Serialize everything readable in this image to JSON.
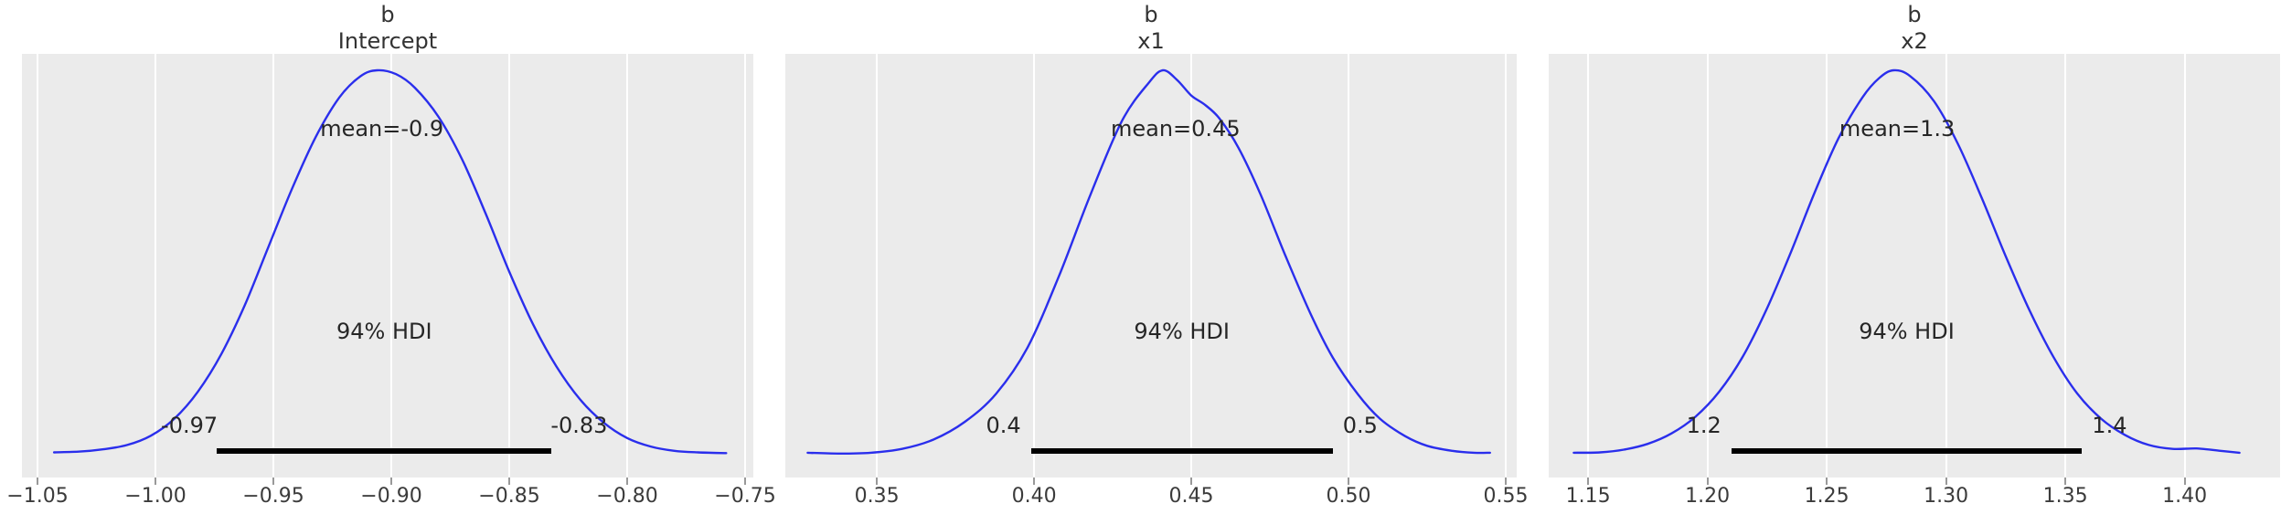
{
  "figure": {
    "background_color": "#ffffff",
    "panel_background_color": "#ebebeb",
    "gridline_color": "#ffffff",
    "curve_color": "#2a2eec",
    "hdi_bar_color": "#000000",
    "title_color": "#333333",
    "annotation_color": "#262626",
    "tick_label_color": "#3b3b3b"
  },
  "chart_data": [
    {
      "type": "kde-posterior",
      "title_line1": "b",
      "title_line2": "Intercept",
      "mean": {
        "label": "mean=-0.9",
        "x": -0.904
      },
      "hdi": {
        "label": "94% HDI",
        "low": -0.974,
        "high": -0.832,
        "low_label": "-0.97",
        "high_label": "-0.83",
        "probability": "94%"
      },
      "xlim": [
        -1.0566,
        -0.7465
      ],
      "tick_values": [
        -1.05,
        -1.0,
        -0.95,
        -0.9,
        -0.85,
        -0.8,
        -0.75
      ],
      "tick_labels": [
        "−1.05",
        "−1.00",
        "−0.95",
        "−0.90",
        "−0.85",
        "−0.80",
        "−0.75"
      ],
      "grid": true,
      "legend": null,
      "curve": {
        "x": [
          -1.043,
          -1.032,
          -1.022,
          -1.012,
          -1.002,
          -0.992,
          -0.982,
          -0.972,
          -0.962,
          -0.952,
          -0.942,
          -0.932,
          -0.922,
          -0.913,
          -0.906,
          -0.898,
          -0.89,
          -0.88,
          -0.87,
          -0.86,
          -0.85,
          -0.84,
          -0.83,
          -0.82,
          -0.81,
          -0.8,
          -0.79,
          -0.78,
          -0.77,
          -0.758
        ],
        "y": [
          0.013,
          0.015,
          0.021,
          0.032,
          0.056,
          0.1,
          0.17,
          0.268,
          0.395,
          0.545,
          0.695,
          0.828,
          0.93,
          0.985,
          1.0,
          0.99,
          0.955,
          0.88,
          0.77,
          0.63,
          0.48,
          0.345,
          0.235,
          0.15,
          0.09,
          0.05,
          0.028,
          0.017,
          0.013,
          0.011
        ]
      }
    },
    {
      "type": "kde-posterior",
      "title_line1": "b",
      "title_line2": "x1",
      "mean": {
        "label": "mean=0.45",
        "x": 0.445
      },
      "hdi": {
        "label": "94% HDI",
        "low": 0.399,
        "high": 0.495,
        "low_label": "0.4",
        "high_label": "0.5",
        "probability": "94%"
      },
      "xlim": [
        0.3209,
        0.5535
      ],
      "tick_values": [
        0.35,
        0.4,
        0.45,
        0.5,
        0.55
      ],
      "tick_labels": [
        "0.35",
        "0.40",
        "0.45",
        "0.50",
        "0.55"
      ],
      "grid": true,
      "legend": null,
      "curve": {
        "x": [
          0.328,
          0.338,
          0.348,
          0.358,
          0.368,
          0.378,
          0.388,
          0.398,
          0.408,
          0.418,
          0.428,
          0.4365,
          0.441,
          0.4455,
          0.45,
          0.4545,
          0.459,
          0.465,
          0.472,
          0.48,
          0.488,
          0.495,
          0.503,
          0.51,
          0.518,
          0.525,
          0.533,
          0.54,
          0.545
        ],
        "y": [
          0.012,
          0.01,
          0.012,
          0.022,
          0.046,
          0.092,
          0.165,
          0.285,
          0.47,
          0.68,
          0.87,
          0.968,
          1.0,
          0.975,
          0.935,
          0.91,
          0.875,
          0.8,
          0.68,
          0.52,
          0.37,
          0.258,
          0.163,
          0.1,
          0.055,
          0.03,
          0.017,
          0.012,
          0.012
        ]
      }
    },
    {
      "type": "kde-posterior",
      "title_line1": "b",
      "title_line2": "x2",
      "mean": {
        "label": "mean=1.3",
        "x": 1.2795
      },
      "hdi": {
        "label": "94% HDI",
        "low": 1.21,
        "high": 1.357,
        "low_label": "1.2",
        "high_label": "1.4",
        "probability": "94%"
      },
      "xlim": [
        1.1335,
        1.44
      ],
      "tick_values": [
        1.15,
        1.2,
        1.25,
        1.3,
        1.35,
        1.4
      ],
      "tick_labels": [
        "1.15",
        "1.20",
        "1.25",
        "1.30",
        "1.35",
        "1.40"
      ],
      "grid": true,
      "legend": null,
      "curve": {
        "x": [
          1.144,
          1.155,
          1.165,
          1.175,
          1.185,
          1.195,
          1.205,
          1.215,
          1.225,
          1.235,
          1.245,
          1.255,
          1.265,
          1.272,
          1.278,
          1.285,
          1.295,
          1.305,
          1.315,
          1.325,
          1.335,
          1.345,
          1.355,
          1.365,
          1.375,
          1.385,
          1.395,
          1.405,
          1.415,
          1.423
        ],
        "y": [
          0.012,
          0.013,
          0.02,
          0.035,
          0.062,
          0.105,
          0.17,
          0.262,
          0.385,
          0.53,
          0.685,
          0.825,
          0.93,
          0.98,
          1.0,
          0.985,
          0.92,
          0.81,
          0.67,
          0.52,
          0.38,
          0.26,
          0.165,
          0.1,
          0.058,
          0.032,
          0.022,
          0.023,
          0.017,
          0.012
        ]
      }
    }
  ]
}
